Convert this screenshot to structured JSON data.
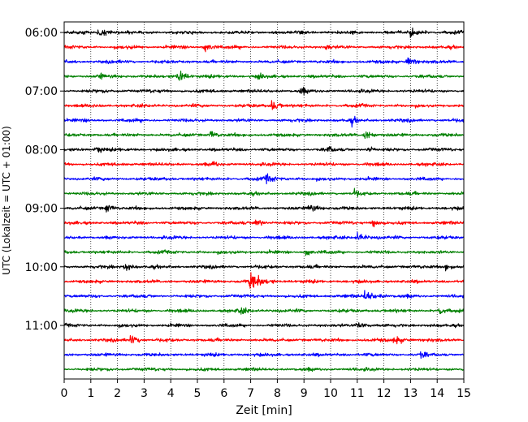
{
  "chart_data": {
    "type": "line",
    "title": "",
    "xlabel": "Zeit  [min]",
    "ylabel": "UTC (Lokalzeit = UTC + 01:00)",
    "xlim": [
      0,
      15
    ],
    "x_ticks": [
      "0",
      "1",
      "2",
      "3",
      "4",
      "5",
      "6",
      "7",
      "8",
      "9",
      "10",
      "11",
      "12",
      "13",
      "14",
      "15"
    ],
    "y_tick_labels": [
      "06:00",
      "07:00",
      "08:00",
      "09:00",
      "10:00",
      "11:00"
    ],
    "grid": "vertical dotted lines at each minute",
    "colors_cycle": [
      "#000000",
      "#ff0000",
      "#0000ff",
      "#008000"
    ],
    "traces": [
      {
        "start": "06:00",
        "color": "#000000",
        "events": [
          {
            "t": 1.3,
            "amp": 1.6
          },
          {
            "t": 13.0,
            "amp": 1.5
          }
        ]
      },
      {
        "start": "06:15",
        "color": "#ff0000",
        "events": [
          {
            "t": 5.3,
            "amp": 1.6
          },
          {
            "t": 9.8,
            "amp": 1.4
          }
        ]
      },
      {
        "start": "06:30",
        "color": "#0000ff",
        "events": [
          {
            "t": 12.9,
            "amp": 1.5
          }
        ]
      },
      {
        "start": "06:45",
        "color": "#008000",
        "events": [
          {
            "t": 1.3,
            "amp": 1.3
          },
          {
            "t": 4.3,
            "amp": 1.7
          },
          {
            "t": 7.3,
            "amp": 1.4
          }
        ]
      },
      {
        "start": "07:00",
        "color": "#000000",
        "events": [
          {
            "t": 8.9,
            "amp": 1.3
          }
        ]
      },
      {
        "start": "07:15",
        "color": "#ff0000",
        "events": [
          {
            "t": 7.8,
            "amp": 1.5
          }
        ]
      },
      {
        "start": "07:30",
        "color": "#0000ff",
        "events": [
          {
            "t": 10.8,
            "amp": 1.3
          }
        ]
      },
      {
        "start": "07:45",
        "color": "#008000",
        "events": [
          {
            "t": 5.5,
            "amp": 1.3
          },
          {
            "t": 11.3,
            "amp": 1.3
          }
        ]
      },
      {
        "start": "08:00",
        "color": "#000000",
        "events": [
          {
            "t": 1.2,
            "amp": 1.4
          },
          {
            "t": 9.9,
            "amp": 1.3
          },
          {
            "t": 11.4,
            "amp": 1.3
          }
        ]
      },
      {
        "start": "08:15",
        "color": "#ff0000",
        "events": [
          {
            "t": 5.6,
            "amp": 1.3
          }
        ]
      },
      {
        "start": "08:30",
        "color": "#0000ff",
        "events": [
          {
            "t": 7.6,
            "amp": 1.7
          }
        ]
      },
      {
        "start": "08:45",
        "color": "#008000",
        "events": [
          {
            "t": 10.9,
            "amp": 1.3
          }
        ]
      },
      {
        "start": "09:00",
        "color": "#000000",
        "events": [
          {
            "t": 1.6,
            "amp": 1.3
          },
          {
            "t": 9.2,
            "amp": 1.5
          }
        ]
      },
      {
        "start": "09:15",
        "color": "#ff0000",
        "events": [
          {
            "t": 7.2,
            "amp": 1.5
          },
          {
            "t": 11.6,
            "amp": 1.4
          }
        ]
      },
      {
        "start": "09:30",
        "color": "#0000ff",
        "events": [
          {
            "t": 11.0,
            "amp": 1.5
          }
        ]
      },
      {
        "start": "09:45",
        "color": "#008000",
        "events": [
          {
            "t": 9.1,
            "amp": 1.2
          }
        ]
      },
      {
        "start": "10:00",
        "color": "#000000",
        "events": [
          {
            "t": 2.3,
            "amp": 1.2
          },
          {
            "t": 14.3,
            "amp": 1.2
          }
        ]
      },
      {
        "start": "10:15",
        "color": "#ff0000",
        "events": [
          {
            "t": 7.0,
            "amp": 3.6
          }
        ]
      },
      {
        "start": "10:30",
        "color": "#0000ff",
        "events": [
          {
            "t": 11.3,
            "amp": 2.3
          }
        ]
      },
      {
        "start": "10:45",
        "color": "#008000",
        "events": [
          {
            "t": 6.6,
            "amp": 1.5
          },
          {
            "t": 14.1,
            "amp": 1.4
          }
        ]
      },
      {
        "start": "11:00",
        "color": "#000000",
        "events": [
          {
            "t": 11.0,
            "amp": 1.4
          }
        ]
      },
      {
        "start": "11:15",
        "color": "#ff0000",
        "events": [
          {
            "t": 2.5,
            "amp": 1.5
          },
          {
            "t": 12.4,
            "amp": 1.7
          }
        ]
      },
      {
        "start": "11:30",
        "color": "#0000ff",
        "events": [
          {
            "t": 13.4,
            "amp": 1.3
          }
        ]
      },
      {
        "start": "11:45",
        "color": "#008000",
        "events": []
      }
    ]
  }
}
